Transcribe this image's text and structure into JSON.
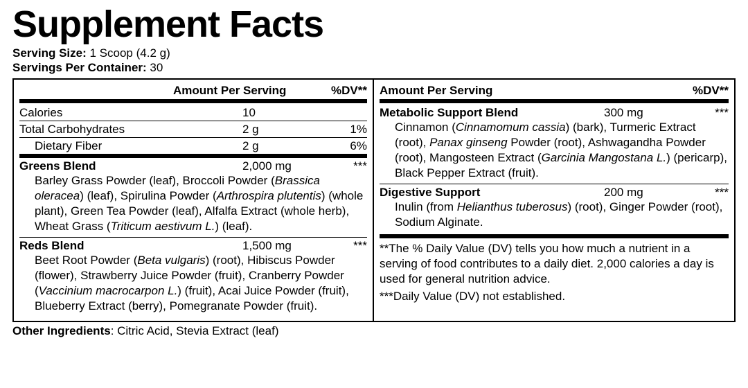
{
  "title": "Supplement Facts",
  "serving_size_label": "Serving Size:",
  "serving_size_value": "1 Scoop (4.2 g)",
  "servings_per_label": "Servings Per Container:",
  "servings_per_value": "30",
  "hdr_amount": "Amount Per Serving",
  "hdr_dv": "%DV**",
  "nutrients": {
    "calories": {
      "name": "Calories",
      "amt": "10",
      "dv": ""
    },
    "carbs": {
      "name": "Total Carbohydrates",
      "amt": "2 g",
      "dv": "1%"
    },
    "fiber": {
      "name": "Dietary Fiber",
      "amt": "2 g",
      "dv": "6%"
    }
  },
  "blends": {
    "greens": {
      "name": "Greens Blend",
      "amt": "2,000 mg",
      "dv": "***",
      "desc": "Barley Grass Powder (leaf), Broccoli Powder (<em>Brassica oleracea</em>) (leaf), Spirulina Powder (<em>Arthrospira plutentis</em>) (whole plant), Green Tea Powder (leaf), Alfalfa Extract (whole herb), Wheat Grass (<em>Triticum aestivum L.</em>) (leaf)."
    },
    "reds": {
      "name": "Reds Blend",
      "amt": "1,500 mg",
      "dv": "***",
      "desc": "Beet Root Powder (<em>Beta vulgaris</em>) (root), Hibiscus Powder (flower), Strawberry Juice Powder (fruit), Cranberry Powder (<em>Vaccinium macrocarpon L.</em>) (fruit), Acai Juice Powder (fruit), Blueberry Extract (berry), Pomegranate Powder (fruit)."
    },
    "metabolic": {
      "name": "Metabolic Support Blend",
      "amt": "300 mg",
      "dv": "***",
      "desc": "Cinnamon (<em>Cinnamomum cassia</em>) (bark), Turmeric Extract (root), <em>Panax ginseng</em> Powder (root), Ashwagandha Powder (root), Mangosteen Extract (<em>Garcinia Mangostana L.</em>) (pericarp), Black Pepper Extract (fruit)."
    },
    "digestive": {
      "name": "Digestive Support",
      "amt": "200 mg",
      "dv": "***",
      "desc": "Inulin (from <em>Helianthus tuberosus</em>) (root), Ginger Powder (root), Sodium Alginate."
    }
  },
  "note1": "**The % Daily Value (DV) tells you how much a nutrient in a serving of food contributes to a daily diet. 2,000 calories a day is used for general nutrition advice.",
  "note2": "***Daily Value (DV) not established.",
  "other_label": "Other Ingredients",
  "other_value": ": Citric Acid, Stevia Extract (leaf)"
}
